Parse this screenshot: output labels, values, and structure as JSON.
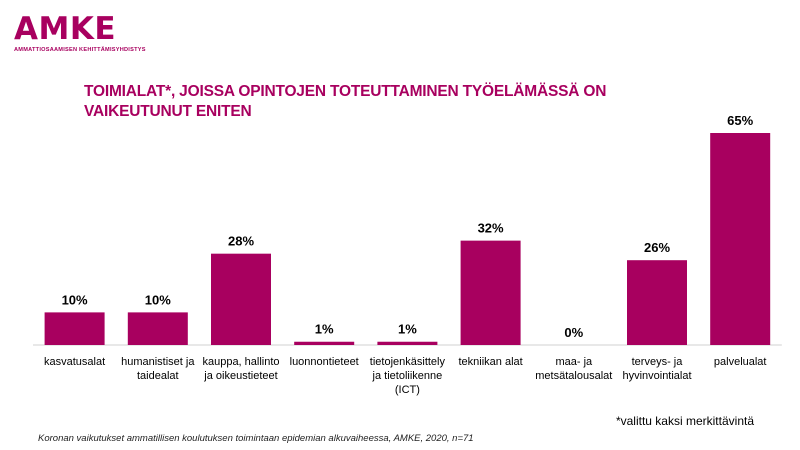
{
  "logo": {
    "word": "AMKE",
    "subtitle": "AMMATTIOSAAMISEN KEHITTÄMISYHDISTYS"
  },
  "note": "*valittu kaksi merkittävintä",
  "source": "Koronan vaikutukset ammatillisen koulutuksen toimintaan epidemian alkuvaiheessa, AMKE, 2020, n=71",
  "colors": {
    "accent": "#a8005f"
  },
  "chart_data": {
    "type": "bar",
    "title": "TOIMIALAT*, JOISSA OPINTOJEN TOTEUTTAMINEN TYÖELÄMÄSSÄ ON VAIKEUTUNUT ENITEN",
    "categories": [
      [
        "kasvatusalat"
      ],
      [
        "humanistiset ja",
        "taidealat"
      ],
      [
        "kauppa, hallinto",
        "ja oikeustieteet"
      ],
      [
        "luonnontieteet"
      ],
      [
        "tietojenkäsittely",
        "ja tietoliikenne",
        "(ICT)"
      ],
      [
        "tekniikan alat"
      ],
      [
        "maa- ja",
        "metsätalousalat"
      ],
      [
        "terveys- ja",
        "hyvinvointialat"
      ],
      [
        "palvelualat"
      ]
    ],
    "values": [
      10,
      10,
      28,
      1,
      1,
      32,
      0,
      26,
      65
    ],
    "value_labels": [
      "10%",
      "10%",
      "28%",
      "1%",
      "1%",
      "32%",
      "0%",
      "26%",
      "65%"
    ],
    "unit": "%",
    "ylim": [
      0,
      70
    ],
    "grid": false,
    "legend": "none"
  }
}
